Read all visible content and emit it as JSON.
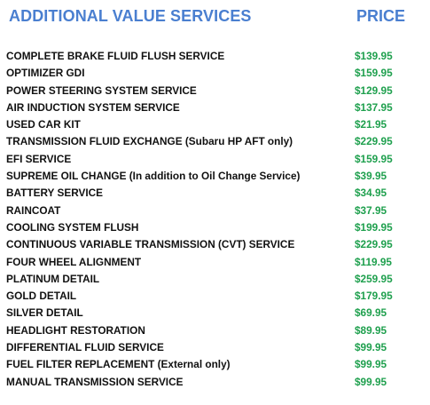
{
  "header": {
    "title": "ADDITIONAL VALUE SERVICES",
    "price_label": "PRICE"
  },
  "colors": {
    "header": "#4a7fd0",
    "service_text": "#111111",
    "price": "#1fa04e"
  },
  "services": [
    {
      "name": "COMPLETE BRAKE FLUID FLUSH SERVICE",
      "price": "$139.95"
    },
    {
      "name": "OPTIMIZER GDI",
      "price": "$159.95"
    },
    {
      "name": "POWER STEERING SYSTEM SERVICE",
      "price": "$129.95"
    },
    {
      "name": "AIR INDUCTION SYSTEM SERVICE",
      "price": "$137.95"
    },
    {
      "name": "USED CAR KIT",
      "price": "$21.95"
    },
    {
      "name": "TRANSMISSION FLUID EXCHANGE (Subaru HP AFT only)",
      "price": "$229.95"
    },
    {
      "name": "EFI SERVICE",
      "price": "$159.95"
    },
    {
      "name": "SUPREME OIL CHANGE (In addition to Oil Change Service)",
      "price": "$39.95"
    },
    {
      "name": "BATTERY SERVICE",
      "price": "$34.95"
    },
    {
      "name": "RAINCOAT",
      "price": "$37.95"
    },
    {
      "name": "COOLING SYSTEM FLUSH",
      "price": "$199.95"
    },
    {
      "name": "CONTINUOUS VARIABLE TRANSMISSION (CVT) SERVICE",
      "price": "$229.95"
    },
    {
      "name": "FOUR WHEEL ALIGNMENT",
      "price": "$119.95"
    },
    {
      "name": "PLATINUM DETAIL",
      "price": "$259.95"
    },
    {
      "name": "GOLD DETAIL",
      "price": "$179.95"
    },
    {
      "name": "SILVER DETAIL",
      "price": "$69.95"
    },
    {
      "name": "HEADLIGHT RESTORATION",
      "price": "$89.95"
    },
    {
      "name": "DIFFERENTIAL FLUID SERVICE",
      "price": "$99.95"
    },
    {
      "name": "FUEL FILTER REPLACEMENT (External only)",
      "price": "$99.95"
    },
    {
      "name": "MANUAL TRANSMISSION SERVICE",
      "price": "$99.95"
    }
  ]
}
